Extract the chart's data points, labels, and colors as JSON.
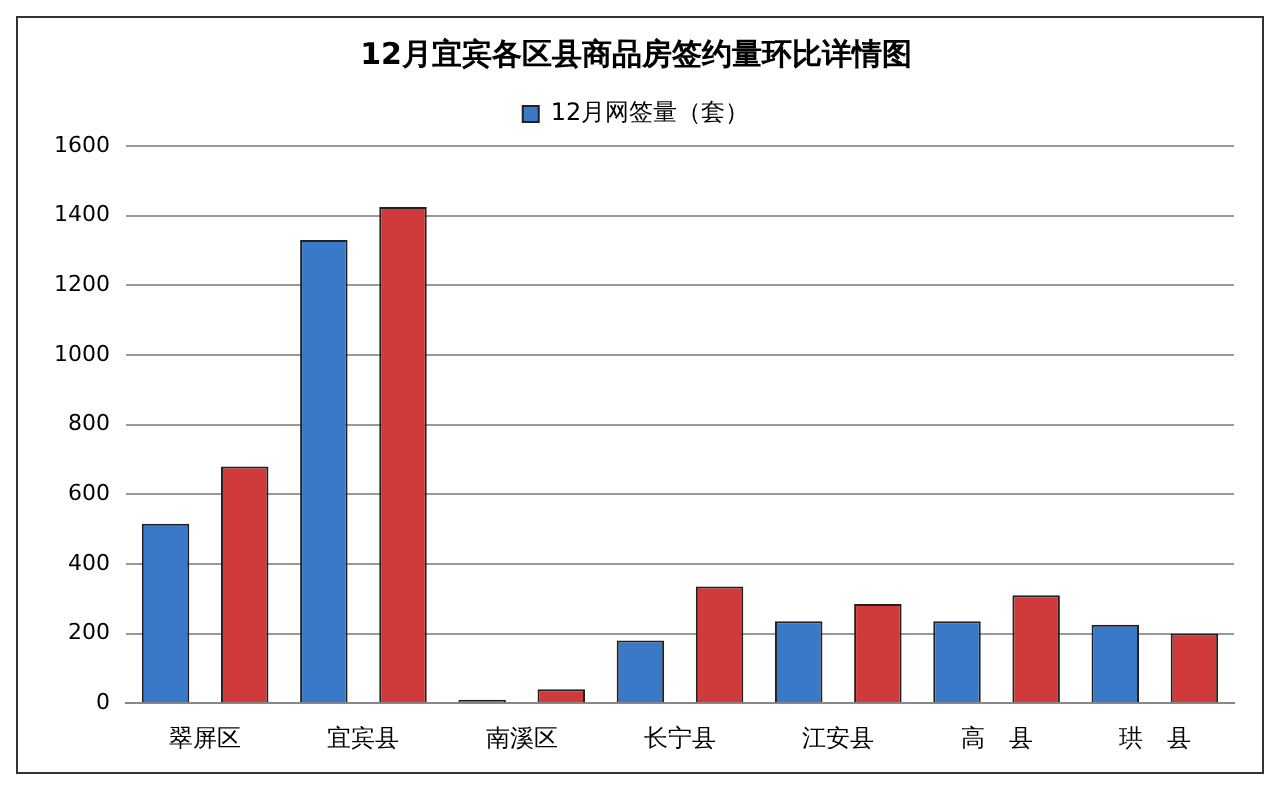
{
  "chart_data": {
    "type": "bar",
    "title": "12月宜宾各区县商品房签约量环比详情图",
    "categories": [
      "翠屏区",
      "宜宾县",
      "南溪区",
      "长宁县",
      "江安县",
      "高　县",
      "珙　县"
    ],
    "series": [
      {
        "name": "12月网签量（套）",
        "color": "#3a78c8",
        "values": [
          515,
          1330,
          10,
          180,
          235,
          235,
          225
        ]
      },
      {
        "color": "#d03a3a",
        "values": [
          680,
          1425,
          40,
          335,
          285,
          310,
          200
        ]
      }
    ],
    "ylim": [
      0,
      1600
    ],
    "yticks": [
      0,
      200,
      400,
      600,
      800,
      1000,
      1200,
      1400,
      1600
    ],
    "grid": "y",
    "legend": "top"
  }
}
